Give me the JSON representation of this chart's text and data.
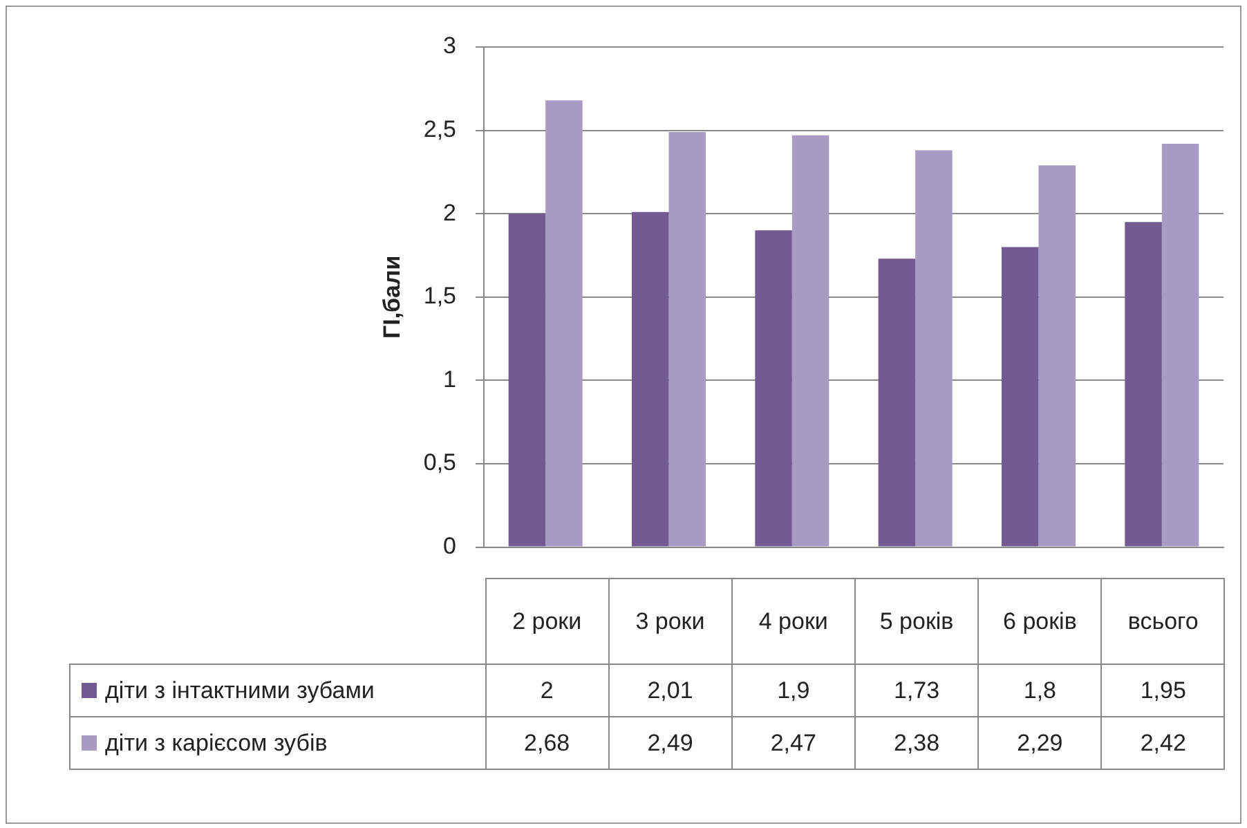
{
  "chart_data": {
    "type": "bar",
    "ylabel": "ГІ,бали",
    "categories": [
      "2 роки",
      "3 роки",
      "4 роки",
      "5 років",
      "6 років",
      "всього"
    ],
    "series": [
      {
        "name": "діти з інтактними зубами",
        "color": "#725a92",
        "values": [
          2,
          2.01,
          1.9,
          1.73,
          1.8,
          1.95
        ],
        "value_labels": [
          "2",
          "2,01",
          "1,9",
          "1,73",
          "1,8",
          "1,95"
        ]
      },
      {
        "name": "діти з карієсом зубів",
        "color": "#a99cc4",
        "values": [
          2.68,
          2.49,
          2.47,
          2.38,
          2.29,
          2.42
        ],
        "value_labels": [
          "2,68",
          "2,49",
          "2,47",
          "2,38",
          "2,29",
          "2,42"
        ]
      }
    ],
    "ylim": [
      0,
      3
    ],
    "yticks": [
      0,
      {
        "value": 0.5,
        "label": "0,5"
      },
      1,
      {
        "value": 1.5,
        "label": "1,5"
      },
      2,
      {
        "value": 2.5,
        "label": "2,5"
      },
      3
    ],
    "grid": "y",
    "legend": "bottom"
  }
}
